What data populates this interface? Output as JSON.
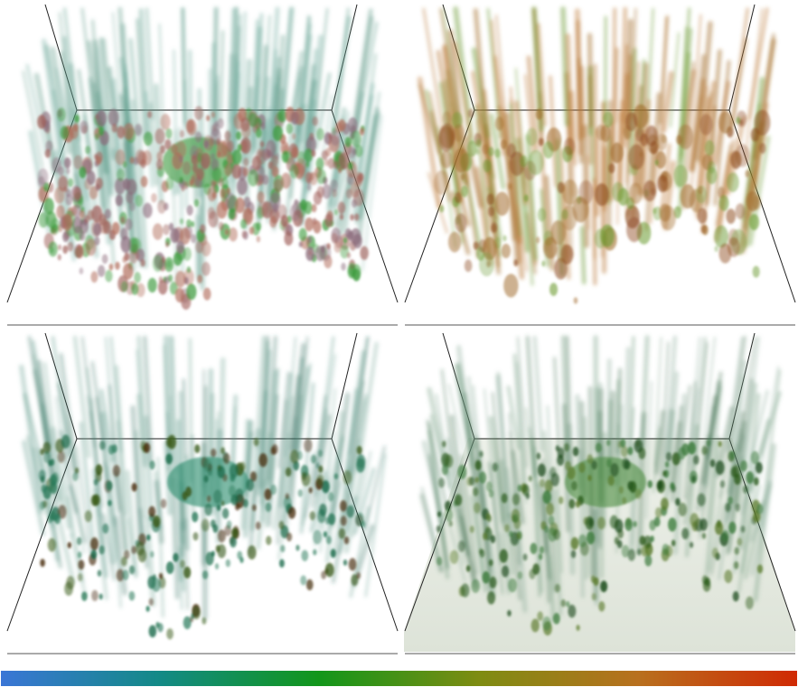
{
  "colorbar": {
    "colors": [
      "#3a76d6",
      "#138a86",
      "#12961a",
      "#7e8c12",
      "#b8701e",
      "#d02a04"
    ]
  }
}
